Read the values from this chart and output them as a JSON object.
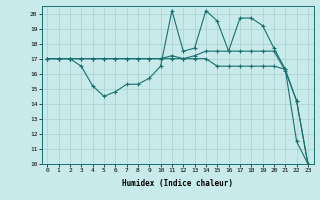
{
  "title": "",
  "xlabel": "Humidex (Indice chaleur)",
  "bg_color": "#c8eaea",
  "grid_color": "#aed4d4",
  "line_color": "#1a7070",
  "ylim": [
    10,
    20.5
  ],
  "xlim": [
    -0.5,
    23.5
  ],
  "yticks": [
    10,
    11,
    12,
    13,
    14,
    15,
    16,
    17,
    18,
    19,
    20
  ],
  "xticks": [
    0,
    1,
    2,
    3,
    4,
    5,
    6,
    7,
    8,
    9,
    10,
    11,
    12,
    13,
    14,
    15,
    16,
    17,
    18,
    19,
    20,
    21,
    22,
    23
  ],
  "line1_x": [
    0,
    1,
    2,
    3,
    4,
    5,
    6,
    7,
    8,
    9,
    10,
    11,
    12,
    13,
    14,
    15,
    16,
    17,
    18,
    19,
    20,
    21,
    22,
    23
  ],
  "line1_y": [
    17.0,
    17.0,
    17.0,
    17.0,
    17.0,
    17.0,
    17.0,
    17.0,
    17.0,
    17.0,
    17.0,
    17.0,
    17.0,
    17.0,
    17.0,
    16.5,
    16.5,
    16.5,
    16.5,
    16.5,
    16.5,
    16.3,
    11.5,
    10.0
  ],
  "line2_x": [
    0,
    1,
    2,
    3,
    4,
    5,
    6,
    7,
    8,
    9,
    10,
    11,
    12,
    13,
    14,
    15,
    16,
    17,
    18,
    19,
    20,
    21,
    22,
    23
  ],
  "line2_y": [
    17.0,
    17.0,
    17.0,
    16.5,
    15.2,
    14.5,
    14.8,
    15.3,
    15.3,
    15.7,
    16.5,
    20.2,
    17.5,
    17.7,
    20.2,
    19.5,
    17.5,
    19.7,
    19.7,
    19.2,
    17.7,
    16.3,
    14.2,
    10.0
  ],
  "line3_x": [
    0,
    1,
    2,
    3,
    4,
    5,
    6,
    7,
    8,
    9,
    10,
    11,
    12,
    13,
    14,
    15,
    16,
    17,
    18,
    19,
    20,
    21,
    22,
    23
  ],
  "line3_y": [
    17.0,
    17.0,
    17.0,
    17.0,
    17.0,
    17.0,
    17.0,
    17.0,
    17.0,
    17.0,
    17.0,
    17.2,
    17.0,
    17.2,
    17.5,
    17.5,
    17.5,
    17.5,
    17.5,
    17.5,
    17.5,
    16.2,
    14.2,
    10.0
  ]
}
